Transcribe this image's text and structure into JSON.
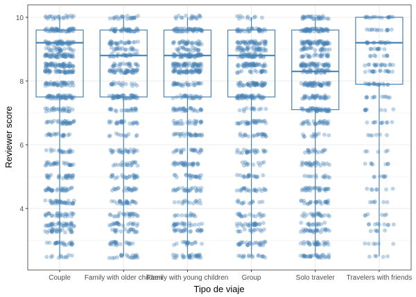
{
  "chart_data": {
    "type": "boxplot",
    "title": "",
    "xlabel": "Tipo de viaje",
    "ylabel": "Reviewer score",
    "ylim": [
      2.07,
      10.39
    ],
    "yticks": [
      4,
      6,
      8,
      10
    ],
    "grid": true,
    "point_color": "#4682B4",
    "score_levels": [
      2.5,
      2.9,
      3.3,
      3.5,
      3.8,
      4.2,
      4.6,
      5.0,
      5.4,
      5.8,
      6.3,
      6.7,
      7.1,
      7.5,
      7.9,
      8.3,
      8.5,
      8.8,
      9.0,
      9.2,
      9.6,
      10
    ],
    "categories": [
      "Couple",
      "Family with older children",
      "Family with young children",
      "Group",
      "Solo traveler",
      "Travelers with friends"
    ],
    "boxes": [
      {
        "min": 2.5,
        "q1": 7.5,
        "median": 9.2,
        "q3": 9.6,
        "max": 10,
        "density": 1.0
      },
      {
        "min": 2.5,
        "q1": 7.5,
        "median": 8.8,
        "q3": 9.6,
        "max": 10,
        "density": 0.8
      },
      {
        "min": 2.5,
        "q1": 7.5,
        "median": 8.8,
        "q3": 9.6,
        "max": 10,
        "density": 0.9
      },
      {
        "min": 2.5,
        "q1": 7.5,
        "median": 8.8,
        "q3": 9.6,
        "max": 10,
        "density": 0.85
      },
      {
        "min": 2.5,
        "q1": 7.1,
        "median": 8.3,
        "q3": 9.6,
        "max": 10,
        "density": 0.9
      },
      {
        "min": 2.5,
        "q1": 7.9,
        "median": 9.2,
        "q3": 10,
        "max": 10,
        "density": 0.35
      }
    ]
  }
}
